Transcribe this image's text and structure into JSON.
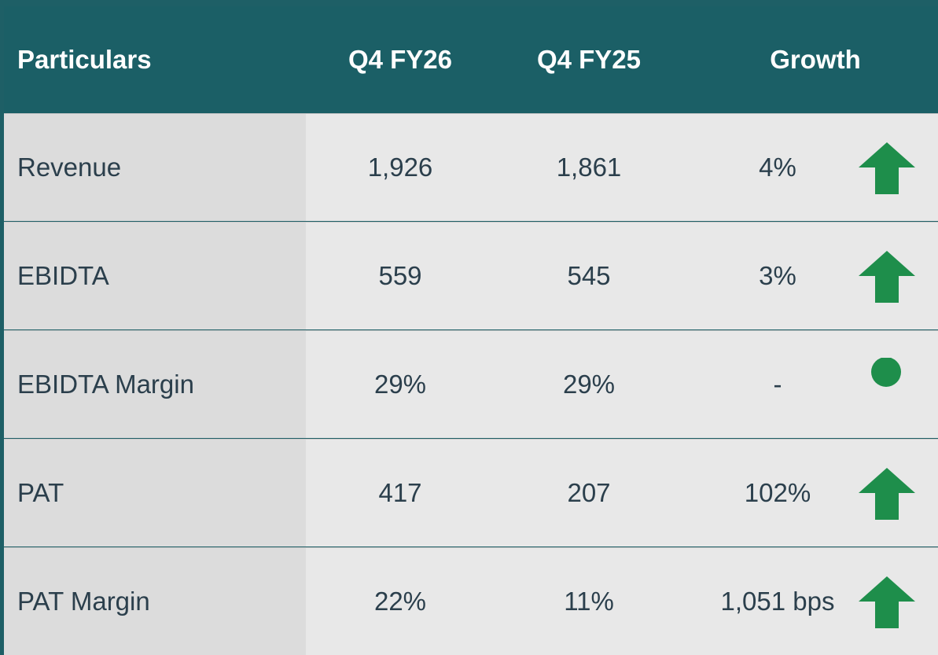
{
  "table": {
    "header": [
      "Particulars",
      "Q4 FY26",
      "Q4 FY25",
      "Growth"
    ],
    "rows": [
      [
        "Revenue",
        "1,926",
        "1,861",
        "4%"
      ],
      [
        "EBIDTA",
        "559",
        "545",
        "3%"
      ],
      [
        "EBIDTA Margin",
        "29%",
        "29%",
        "-"
      ],
      [
        "PAT",
        "417",
        "207",
        "102%"
      ],
      [
        "PAT Margin",
        "22%",
        "11%",
        "1,051 bps"
      ]
    ],
    "indicators": [
      "up",
      "up",
      "flat",
      "up",
      "up"
    ]
  }
}
